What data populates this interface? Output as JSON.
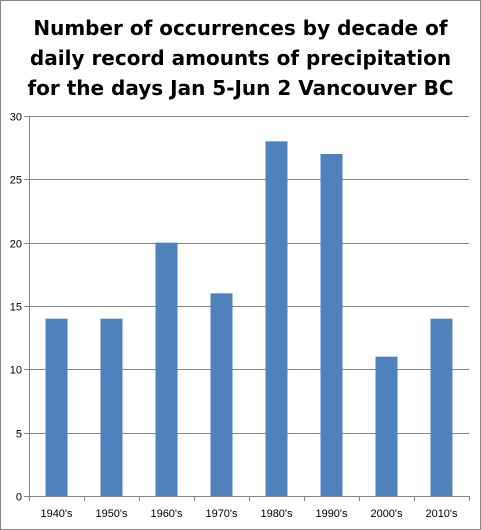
{
  "chart_data": {
    "type": "bar",
    "title_lines": [
      "Number of occurrences by decade of",
      "daily record amounts of precipitation",
      "for the days Jan 5-Jun 2 Vancouver BC"
    ],
    "categories": [
      "1940's",
      "1950's",
      "1960's",
      "1970's",
      "1980's",
      "1990's",
      "2000's",
      "2010's"
    ],
    "values": [
      14,
      14,
      20,
      16,
      28,
      27,
      11,
      14
    ],
    "ylim": [
      0,
      30
    ],
    "yticks": [
      0,
      5,
      10,
      15,
      20,
      25,
      30
    ],
    "grid": true,
    "legend": "none",
    "colors": {
      "bar": "#4f81bd",
      "grid": "#868686",
      "axis": "#868686"
    }
  }
}
